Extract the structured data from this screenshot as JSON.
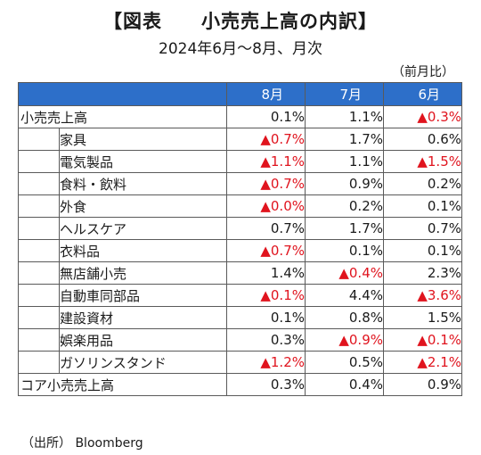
{
  "title": "【図表　　小売売上高の内訳】",
  "subtitle": "2024年6月～8月、月次",
  "unit_note": "（前月比）",
  "columns": [
    "8月",
    "7月",
    "6月"
  ],
  "rows": [
    {
      "label": "小売売上高",
      "level": "top",
      "values": [
        {
          "text": "0.1%",
          "neg": false
        },
        {
          "text": "1.1%",
          "neg": false
        },
        {
          "text": "▲0.3%",
          "neg": true
        }
      ]
    },
    {
      "label": "家具",
      "level": "sub",
      "values": [
        {
          "text": "▲0.7%",
          "neg": true
        },
        {
          "text": "1.7%",
          "neg": false
        },
        {
          "text": "0.6%",
          "neg": false
        }
      ]
    },
    {
      "label": "電気製品",
      "level": "sub",
      "values": [
        {
          "text": "▲1.1%",
          "neg": true
        },
        {
          "text": "1.1%",
          "neg": false
        },
        {
          "text": "▲1.5%",
          "neg": true
        }
      ]
    },
    {
      "label": "食料・飲料",
      "level": "sub",
      "values": [
        {
          "text": "▲0.7%",
          "neg": true
        },
        {
          "text": "0.9%",
          "neg": false
        },
        {
          "text": "0.2%",
          "neg": false
        }
      ]
    },
    {
      "label": "外食",
      "level": "sub",
      "values": [
        {
          "text": "▲0.0%",
          "neg": true
        },
        {
          "text": "0.2%",
          "neg": false
        },
        {
          "text": "0.1%",
          "neg": false
        }
      ]
    },
    {
      "label": "ヘルスケア",
      "level": "sub",
      "values": [
        {
          "text": "0.7%",
          "neg": false
        },
        {
          "text": "1.7%",
          "neg": false
        },
        {
          "text": "0.7%",
          "neg": false
        }
      ]
    },
    {
      "label": "衣料品",
      "level": "sub",
      "values": [
        {
          "text": "▲0.7%",
          "neg": true
        },
        {
          "text": "0.1%",
          "neg": false
        },
        {
          "text": "0.1%",
          "neg": false
        }
      ]
    },
    {
      "label": "無店舗小売",
      "level": "sub",
      "values": [
        {
          "text": "1.4%",
          "neg": false
        },
        {
          "text": "▲0.4%",
          "neg": true
        },
        {
          "text": "2.3%",
          "neg": false
        }
      ]
    },
    {
      "label": "自動車同部品",
      "level": "sub",
      "values": [
        {
          "text": "▲0.1%",
          "neg": true
        },
        {
          "text": "4.4%",
          "neg": false
        },
        {
          "text": "▲3.6%",
          "neg": true
        }
      ]
    },
    {
      "label": "建設資材",
      "level": "sub",
      "values": [
        {
          "text": "0.1%",
          "neg": false
        },
        {
          "text": "0.8%",
          "neg": false
        },
        {
          "text": "1.5%",
          "neg": false
        }
      ]
    },
    {
      "label": "娯楽用品",
      "level": "sub",
      "values": [
        {
          "text": "0.3%",
          "neg": false
        },
        {
          "text": "▲0.9%",
          "neg": true
        },
        {
          "text": "▲0.1%",
          "neg": true
        }
      ]
    },
    {
      "label": "ガソリンスタンド",
      "level": "sub",
      "values": [
        {
          "text": "▲1.2%",
          "neg": true
        },
        {
          "text": "0.5%",
          "neg": false
        },
        {
          "text": "▲2.1%",
          "neg": true
        }
      ]
    },
    {
      "label": "コア小売売上高",
      "level": "top",
      "values": [
        {
          "text": "0.3%",
          "neg": false
        },
        {
          "text": "0.4%",
          "neg": false
        },
        {
          "text": "0.9%",
          "neg": false
        }
      ]
    }
  ],
  "source": "（出所） Bloomberg",
  "colors": {
    "header": "#2d6fc9",
    "negative": "#e0141e"
  }
}
